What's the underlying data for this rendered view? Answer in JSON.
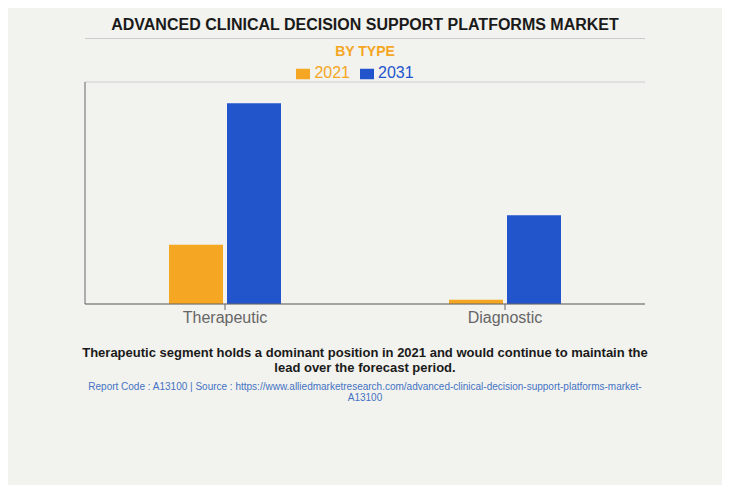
{
  "chart_data": {
    "type": "bar",
    "title": "ADVANCED CLINICAL DECISION SUPPORT PLATFORMS MARKET",
    "subtitle": "BY TYPE",
    "categories": [
      "Therapeutic",
      "Diagnostic"
    ],
    "series": [
      {
        "name": "2021",
        "color": "#F5A623",
        "values": [
          0.28,
          0.02
        ]
      },
      {
        "name": "2031",
        "color": "#2255CC",
        "values": [
          0.95,
          0.42
        ]
      }
    ],
    "ylim": [
      0,
      1.05
    ],
    "yticks": [
      0,
      0.25,
      0.5,
      0.75,
      1
    ],
    "grid": true,
    "tick_labels": "x",
    "legend": "top",
    "annotations": [
      "Therapeutic segment holds a dominant position in 2021 and would continue to maintain the\nlead over the forecast period.",
      "Report Code : A13100  |  Source : https://www.alliedmarketresearch.com/advanced-clinical-decision-support-platforms-market-\nA13100"
    ]
  }
}
